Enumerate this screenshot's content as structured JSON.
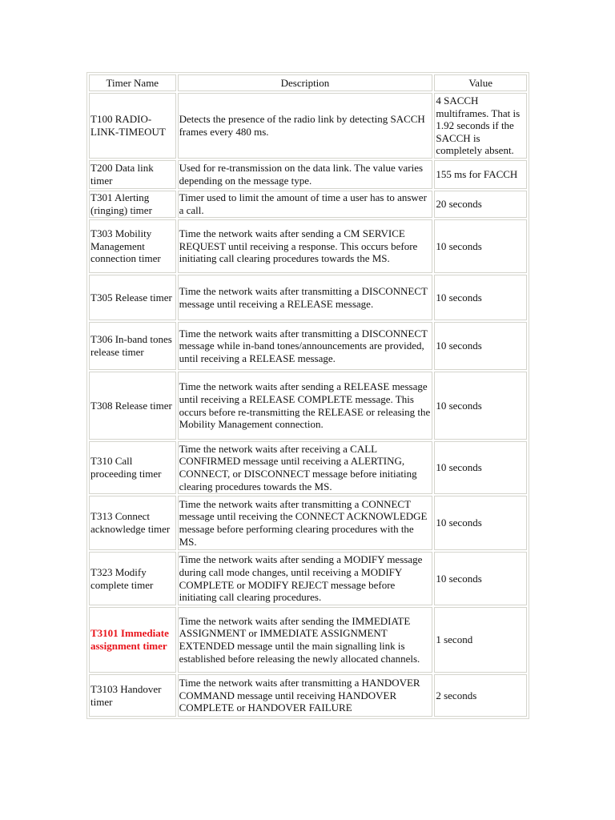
{
  "headers": [
    "Timer Name",
    "Description",
    "Value"
  ],
  "highlight_color": "#e8141b",
  "rows": [
    {
      "name": "T100 RADIO-LINK-TIMEOUT",
      "description": "Detects the presence of the radio link by detecting SACCH frames every 480 ms.",
      "value": "4 SACCH multiframes. That is 1.92 seconds if the SACCH is completely absent."
    },
    {
      "name": "T200 Data link timer",
      "description": "Used for re-transmission on the data link. The value varies depending on the message type.",
      "value": "155 ms for FACCH"
    },
    {
      "name": "T301 Alerting (ringing) timer",
      "description": "Timer used to limit the amount of time a user has to answer a call.",
      "value": "20 seconds"
    },
    {
      "name": "T303 Mobility Management connection timer",
      "description": "Time the network waits after sending a CM SERVICE REQUEST until receiving a response. This occurs before initiating call clearing procedures towards the MS.",
      "value": "10 seconds"
    },
    {
      "name": "T305 Release timer",
      "description": "Time the network waits after transmitting a DISCONNECT message until receiving a RELEASE message.",
      "value": "10 seconds"
    },
    {
      "name": "T306 In-band tones release timer",
      "description": "Time the network waits after transmitting a DISCONNECT message while in-band tones/announcements are provided, until receiving a RELEASE message.",
      "value": "10 seconds"
    },
    {
      "name": "T308 Release timer",
      "description": "Time the network waits after sending a RELEASE message until receiving a RELEASE COMPLETE message. This occurs before re-transmitting the RELEASE or releasing the Mobility Management connection.",
      "value": "10 seconds"
    },
    {
      "name": "T310 Call proceeding timer",
      "description": "Time the network waits after receiving a CALL CONFIRMED message until receiving a ALERTING, CONNECT, or DISCONNECT message before initiating clearing procedures towards the MS.",
      "value": "10 seconds"
    },
    {
      "name": "T313 Connect acknowledge timer",
      "description": "Time the network waits after transmitting a CONNECT message until receiving the CONNECT ACKNOWLEDGE message before performing clearing procedures with the MS.",
      "value": "10 seconds"
    },
    {
      "name": "T323 Modify complete timer",
      "description": "Time the network waits after sending a MODIFY message during call mode changes, until receiving a MODIFY COMPLETE or MODIFY REJECT message before initiating call clearing procedures.",
      "value": "10 seconds"
    },
    {
      "name": "T3101 Immediate assignment timer",
      "description": "Time the network waits after sending the IMMEDIATE ASSIGNMENT or IMMEDIATE ASSIGNMENT EXTENDED message until the main signalling link is established before releasing the newly allocated channels.",
      "value": "1 second",
      "highlighted": true
    },
    {
      "name": "T3103 Handover timer",
      "description": "Time the network waits after transmitting a HANDOVER COMMAND message until receiving HANDOVER COMPLETE or HANDOVER FAILURE",
      "value": "2 seconds"
    }
  ]
}
